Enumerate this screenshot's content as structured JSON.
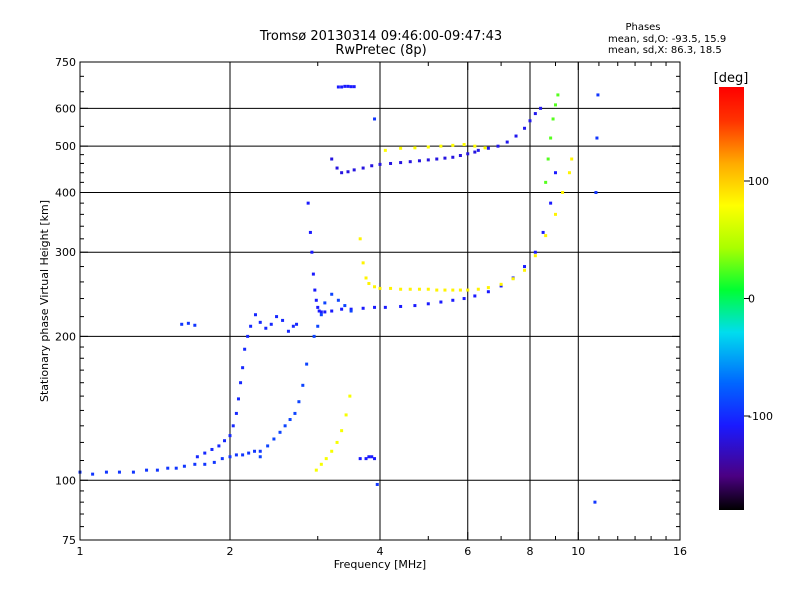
{
  "chart_data": {
    "type": "scatter",
    "title": "Tromsø 20130314 09:46:00-09:47:43",
    "subtitle": "RwPretec (8p)",
    "xlabel": "Frequency [MHz]",
    "ylabel": "Stationary phase Virtual Height [km]",
    "x_scale": "log",
    "y_scale": "log",
    "xlim": [
      1,
      16
    ],
    "ylim": [
      75,
      750
    ],
    "xticks": [
      1,
      2,
      4,
      6,
      8,
      10,
      16
    ],
    "xtick_labels": [
      "1",
      "2",
      "4",
      "6",
      "8",
      "10",
      "16"
    ],
    "yticks": [
      75,
      100,
      200,
      300,
      400,
      500,
      600,
      750
    ],
    "ytick_labels": [
      "75",
      "100",
      "200",
      "300",
      "400",
      "500",
      "600",
      "750"
    ],
    "x_gridlines": [
      2,
      4,
      6,
      8,
      10
    ],
    "y_gridlines": [
      100,
      200,
      300,
      400,
      500,
      600
    ],
    "grid": true,
    "info_box": {
      "header": "Phases",
      "line1": "mean, sd,O:  -93.5, 15.9",
      "line2": "mean, sd,X:   86.3, 18.5"
    },
    "colorbar": {
      "unit": "[deg]",
      "range": [
        -180,
        180
      ],
      "ticks": [
        100,
        0,
        -100
      ],
      "tick_labels": [
        "100",
        "0",
        "-100"
      ]
    },
    "series": [
      {
        "phase": -100,
        "x": [
          1.0,
          1.06,
          1.13,
          1.2,
          1.28,
          1.36,
          1.43,
          1.5,
          1.56,
          1.62,
          1.7,
          1.78,
          1.86,
          1.93,
          2.0,
          2.06,
          2.12,
          2.18,
          2.24,
          2.3
        ],
        "y": [
          104,
          103,
          104,
          104,
          104,
          105,
          105,
          106,
          106,
          107,
          108,
          108,
          109,
          111,
          112,
          113,
          113,
          114,
          115,
          115
        ]
      },
      {
        "phase": -105,
        "x": [
          1.72,
          1.78,
          1.84,
          1.9,
          1.95,
          2.0,
          2.03,
          2.06,
          2.08,
          2.1,
          2.12,
          2.14,
          2.17,
          2.2,
          2.25,
          2.3,
          2.36,
          2.42,
          2.48,
          2.55,
          2.62,
          2.68,
          2.72
        ],
        "y": [
          112,
          114,
          116,
          118,
          121,
          124,
          130,
          138,
          148,
          160,
          172,
          188,
          200,
          210,
          222,
          214,
          208,
          212,
          220,
          216,
          205,
          210,
          212
        ]
      },
      {
        "phase": -95,
        "x": [
          2.3,
          2.38,
          2.45,
          2.52,
          2.58,
          2.64,
          2.7,
          2.75,
          2.8,
          2.85
        ],
        "y": [
          112,
          118,
          122,
          126,
          130,
          134,
          138,
          146,
          158,
          175
        ]
      },
      {
        "phase": -110,
        "x": [
          2.87,
          2.9,
          2.92,
          2.94,
          2.96,
          2.98,
          3.0,
          3.02,
          3.05,
          3.1,
          3.2,
          3.35,
          3.5,
          3.7,
          3.9,
          4.1,
          4.4,
          4.7,
          5.0,
          5.3,
          5.6,
          5.9,
          6.2,
          6.6,
          7.0,
          7.4,
          7.8,
          8.2,
          8.5,
          8.8,
          9.0
        ],
        "y": [
          380,
          330,
          300,
          270,
          250,
          238,
          230,
          226,
          225,
          225,
          226,
          228,
          228,
          229,
          230,
          230,
          231,
          232,
          234,
          236,
          238,
          240,
          243,
          248,
          255,
          265,
          280,
          300,
          330,
          380,
          440
        ]
      },
      {
        "phase": -95,
        "x": [
          2.95,
          3.0,
          3.05,
          3.1,
          3.2,
          3.3,
          3.4,
          3.5
        ],
        "y": [
          200,
          210,
          222,
          235,
          245,
          238,
          232,
          226
        ]
      },
      {
        "phase": -120,
        "x": [
          3.2,
          3.28,
          3.35,
          3.45,
          3.55,
          3.7,
          3.85,
          4.0,
          4.2,
          4.4,
          4.6,
          4.8,
          5.0,
          5.2,
          5.4,
          5.6,
          5.8,
          6.0,
          6.2
        ],
        "y": [
          470,
          450,
          440,
          442,
          446,
          450,
          455,
          458,
          460,
          462,
          464,
          466,
          468,
          470,
          472,
          474,
          478,
          482,
          486
        ]
      },
      {
        "phase": -115,
        "x": [
          6.3,
          6.6,
          6.9,
          7.2,
          7.5,
          7.8,
          8.0,
          8.2,
          8.4
        ],
        "y": [
          490,
          495,
          500,
          510,
          525,
          545,
          565,
          585,
          600
        ]
      },
      {
        "phase": 95,
        "x": [
          3.65,
          3.7,
          3.75,
          3.8,
          3.9,
          4.0,
          4.2,
          4.4,
          4.6,
          4.8,
          5.0,
          5.2,
          5.4,
          5.6,
          5.8,
          6.0,
          6.3,
          6.6,
          7.0,
          7.4,
          7.8,
          8.2,
          8.6,
          9.0,
          9.3,
          9.6,
          9.7
        ],
        "y": [
          320,
          285,
          265,
          258,
          254,
          252,
          252,
          251,
          251,
          251,
          251,
          250,
          250,
          250,
          250,
          250,
          251,
          253,
          257,
          264,
          275,
          295,
          325,
          360,
          400,
          440,
          470
        ]
      },
      {
        "phase": 90,
        "x": [
          4.1,
          4.4,
          4.7,
          5.0,
          5.3,
          5.6,
          5.9,
          6.2,
          6.5
        ],
        "y": [
          490,
          495,
          496,
          498,
          500,
          502,
          504,
          500,
          496
        ]
      },
      {
        "phase": 85,
        "x": [
          2.98,
          3.05,
          3.12,
          3.2,
          3.28,
          3.35,
          3.42,
          3.48
        ],
        "y": [
          105,
          108,
          111,
          115,
          120,
          127,
          137,
          150
        ]
      },
      {
        "phase": 20,
        "x": [
          8.6,
          8.7,
          8.8,
          8.9,
          9.0,
          9.1
        ],
        "y": [
          420,
          470,
          520,
          570,
          610,
          640
        ]
      },
      {
        "phase": -110,
        "x": [
          3.3,
          3.35,
          3.4,
          3.45,
          3.5,
          3.55,
          3.65,
          3.75,
          3.8,
          3.85,
          3.9
        ],
        "y": [
          665,
          665,
          667,
          667,
          666,
          666,
          111,
          111,
          112,
          112,
          111
        ]
      },
      {
        "phase": -100,
        "x": [
          1.6,
          1.65,
          1.7,
          3.9,
          3.95,
          10.8,
          10.85,
          10.9,
          10.95
        ],
        "y": [
          212,
          213,
          211,
          570,
          98,
          90,
          400,
          520,
          640
        ]
      }
    ]
  }
}
